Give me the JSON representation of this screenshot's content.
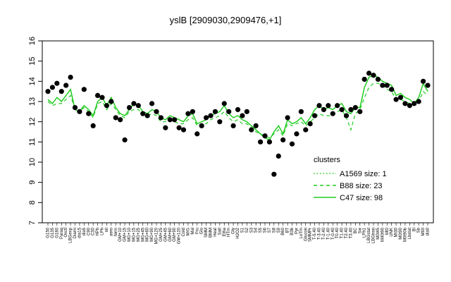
{
  "chart_data": {
    "type": "line",
    "title": "yslB [2909030,2909476,+1]",
    "xlabel": "",
    "ylabel": "",
    "ylim": [
      7,
      16
    ],
    "yticks": [
      7,
      8,
      9,
      10,
      11,
      12,
      13,
      14,
      15,
      16
    ],
    "grid": false,
    "legend": {
      "title": "clusters",
      "placement": "right",
      "entries": [
        {
          "label": "A1569 size: 1",
          "style": "dotted"
        },
        {
          "label": "B88 size: 23",
          "style": "dashed"
        },
        {
          "label": "C47 size: 98",
          "style": "solid"
        }
      ]
    },
    "x_tick_labels": [
      "G150",
      "G135",
      "G180",
      "Paraq",
      "Oxctl",
      "LBGexp",
      "Diami",
      "dia15",
      "dia5",
      "C90",
      "C30",
      "HPh",
      "LPh",
      "nit",
      "aero",
      "ferm",
      "GM+10",
      "GM+15",
      "MG+10",
      "MG+15",
      "MG+25",
      "MG+45",
      "MG+60",
      "MG+90",
      "MG+120",
      "GM+25",
      "GM+45",
      "GM+60",
      "GM+90",
      "GM+120",
      "Cold",
      "M/G",
      "Mal",
      "Fru",
      "Glu",
      "SMM",
      "BMM",
      "Heat",
      "Salt",
      "Etha",
      "HTm",
      "Gly",
      "H2O2",
      "S1",
      "S2",
      "S3",
      "S4",
      "S5",
      "S6",
      "S7",
      "S8",
      "S9",
      "B60",
      "BT",
      "B36",
      "Pyr",
      "LoTm",
      "Glucon",
      "SMMPr",
      "T-5.40",
      "T-3.40",
      "T-2.40",
      "T-1.40",
      "T-0.40",
      "T0.40",
      "T1.40",
      "T2.40",
      "T3.40",
      "BC",
      "Sw",
      "LPh1",
      "LBGstat",
      "LBGtran",
      "M0t45",
      "M40t90",
      "Mt0",
      "UNK",
      "Mt30",
      "M0t90",
      "M0t90b",
      "Lbstat",
      "Bl",
      "Sb",
      "Mt0t",
      "dia0"
    ],
    "series": [
      {
        "style": "solid",
        "values": [
          13.1,
          12.9,
          13.2,
          13.0,
          13.3,
          13.6,
          12.6,
          12.5,
          12.8,
          12.6,
          12.3,
          13.0,
          13.2,
          12.8,
          13.2,
          12.7,
          12.4,
          12.3,
          12.6,
          12.9,
          12.8,
          12.5,
          12.4,
          12.6,
          12.5,
          12.2,
          12.1,
          12.3,
          12.2,
          12.1,
          12.0,
          12.3,
          12.4,
          11.9,
          12.0,
          12.1,
          12.3,
          12.4,
          12.5,
          12.8,
          12.4,
          12.2,
          12.3,
          12.1,
          12.0,
          11.8,
          11.6,
          11.4,
          11.2,
          11.1,
          11.5,
          11.8,
          11.4,
          12.1,
          11.9,
          12.0,
          12.2,
          11.9,
          12.2,
          12.6,
          12.8,
          12.6,
          12.7,
          12.6,
          12.8,
          12.9,
          12.5,
          12.4,
          12.7,
          12.7,
          13.7,
          14.2,
          14.3,
          14.2,
          14.0,
          13.9,
          13.8,
          13.3,
          13.4,
          13.2,
          13.1,
          12.9,
          13.2,
          13.9,
          13.5
        ]
      },
      {
        "style": "dashed",
        "values": [
          13.0,
          12.8,
          12.9,
          12.9,
          13.1,
          13.3,
          12.6,
          12.5,
          12.7,
          12.5,
          12.2,
          12.9,
          13.0,
          12.6,
          12.9,
          12.6,
          12.3,
          12.2,
          12.5,
          12.6,
          12.6,
          12.4,
          12.3,
          12.4,
          12.3,
          12.0,
          12.0,
          12.1,
          12.0,
          11.9,
          11.9,
          12.1,
          12.2,
          11.8,
          11.9,
          11.9,
          12.1,
          12.2,
          12.3,
          12.5,
          12.2,
          12.0,
          12.1,
          11.9,
          11.9,
          11.7,
          11.5,
          11.4,
          11.3,
          11.2,
          11.4,
          11.6,
          11.3,
          11.9,
          11.8,
          11.9,
          12.0,
          11.8,
          12.0,
          12.2,
          12.4,
          12.3,
          12.3,
          12.3,
          12.5,
          12.6,
          12.2,
          11.6,
          12.4,
          12.6,
          13.2,
          13.7,
          13.9,
          13.9,
          13.8,
          13.6,
          13.5,
          13.1,
          13.1,
          13.0,
          12.9,
          12.8,
          13.0,
          13.5,
          13.3
        ]
      },
      {
        "style": "points",
        "values": [
          13.5,
          13.7,
          13.9,
          13.5,
          13.8,
          14.2,
          12.7,
          12.5,
          13.6,
          12.4,
          11.8,
          13.3,
          13.2,
          12.8,
          13.0,
          12.2,
          12.1,
          11.1,
          12.7,
          12.9,
          12.8,
          12.4,
          12.3,
          12.9,
          12.5,
          12.2,
          11.7,
          12.1,
          12.1,
          11.7,
          11.6,
          12.4,
          12.5,
          11.4,
          11.8,
          12.2,
          12.3,
          12.5,
          12.0,
          12.9,
          12.5,
          11.8,
          12.6,
          12.3,
          12.5,
          11.6,
          11.8,
          11.0,
          11.3,
          11.0,
          9.4,
          10.3,
          11.1,
          12.2,
          10.9,
          11.4,
          12.5,
          11.6,
          11.9,
          12.3,
          12.8,
          12.6,
          12.8,
          12.4,
          12.8,
          12.6,
          12.3,
          12.6,
          12.7,
          12.5,
          14.1,
          14.4,
          14.3,
          14.1,
          13.8,
          13.8,
          13.6,
          13.1,
          13.2,
          12.9,
          12.8,
          12.9,
          13.0,
          14.0,
          13.8
        ]
      }
    ]
  }
}
